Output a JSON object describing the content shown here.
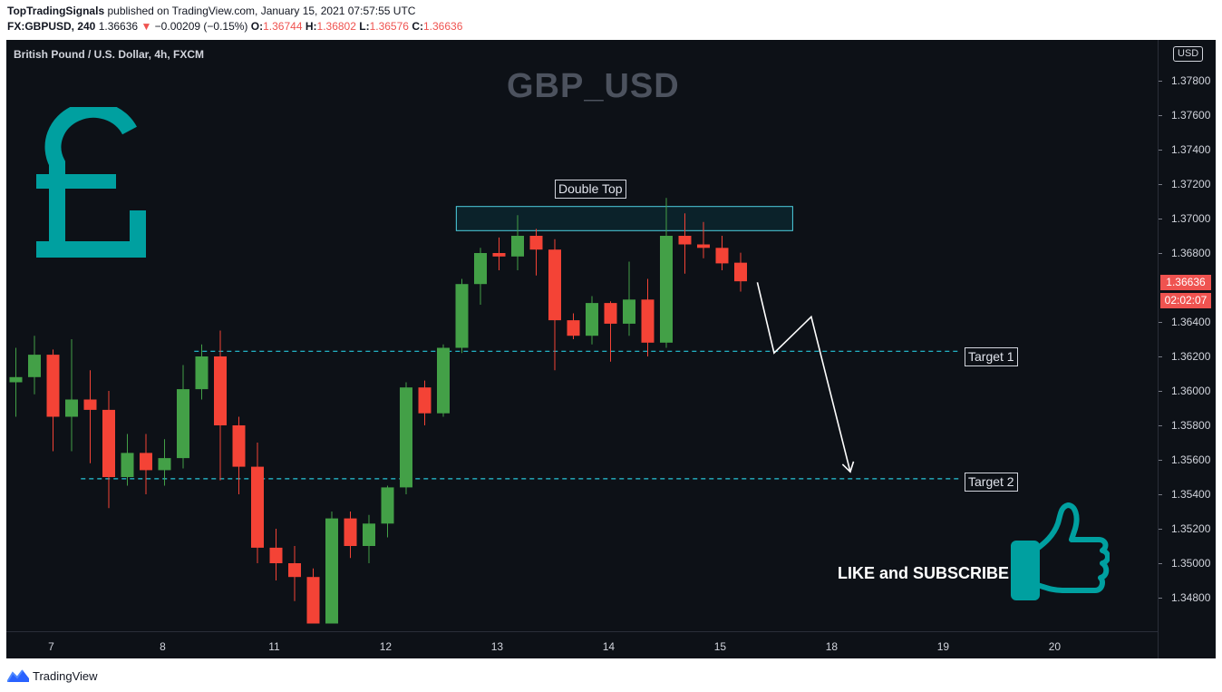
{
  "header": {
    "publisher": "TopTradingSignals",
    "published_text": "published on TradingView.com, January 15, 2021 07:57:55 UTC",
    "ticker": "FX:GBPUSD, 240",
    "last": "1.36636",
    "change_arrow": "▼",
    "change": "−0.00209 (−0.15%)",
    "o_label": "O:",
    "o_value": "1.36744",
    "h_label": "H:",
    "h_value": "1.36802",
    "l_label": "L:",
    "l_value": "1.36576",
    "c_label": "C:",
    "c_value": "1.36636"
  },
  "chart_title": "British Pound / U.S. Dollar, 4h, FXCM",
  "watermark": "GBP_USD",
  "currency_button": "USD",
  "current_price": "1.36636",
  "countdown": "02:02:07",
  "annotations": {
    "double_top": "Double Top",
    "target1": "Target 1",
    "target2": "Target 2",
    "cta": "LIKE and SUBSCRIBE"
  },
  "colors": {
    "up": "#43a047",
    "down": "#f44336",
    "accent": "#00a0a0",
    "background": "#0d1117"
  },
  "footer": {
    "brand": "TradingView"
  },
  "chart_data": {
    "type": "candlestick",
    "symbol": "GBPUSD",
    "interval": "4h",
    "ylim": [
      1.3465,
      1.381
    ],
    "y_ticks": [
      "1.37800",
      "1.37600",
      "1.37400",
      "1.37200",
      "1.37000",
      "1.36800",
      "1.36400",
      "1.36200",
      "1.36000",
      "1.35800",
      "1.35600",
      "1.35400",
      "1.35200",
      "1.35000",
      "1.34800"
    ],
    "x_ticks": [
      {
        "label": "7",
        "i": 1.9
      },
      {
        "label": "8",
        "i": 7.9
      },
      {
        "label": "11",
        "i": 13.9
      },
      {
        "label": "12",
        "i": 19.9
      },
      {
        "label": "13",
        "i": 25.9
      },
      {
        "label": "14",
        "i": 31.9
      },
      {
        "label": "15",
        "i": 37.9
      },
      {
        "label": "18",
        "i": 43.9
      },
      {
        "label": "19",
        "i": 49.9
      },
      {
        "label": "20",
        "i": 55.9
      }
    ],
    "candles": [
      {
        "o": 1.3605,
        "h": 1.3625,
        "l": 1.3585,
        "c": 1.3608
      },
      {
        "o": 1.3608,
        "h": 1.3632,
        "l": 1.3598,
        "c": 1.3621
      },
      {
        "o": 1.3621,
        "h": 1.3624,
        "l": 1.3565,
        "c": 1.3585
      },
      {
        "o": 1.3585,
        "h": 1.363,
        "l": 1.3565,
        "c": 1.3595
      },
      {
        "o": 1.3595,
        "h": 1.3612,
        "l": 1.3558,
        "c": 1.3589
      },
      {
        "o": 1.3589,
        "h": 1.36,
        "l": 1.3532,
        "c": 1.355
      },
      {
        "o": 1.355,
        "h": 1.3575,
        "l": 1.3545,
        "c": 1.3564
      },
      {
        "o": 1.3564,
        "h": 1.3575,
        "l": 1.354,
        "c": 1.3554
      },
      {
        "o": 1.3554,
        "h": 1.3572,
        "l": 1.3545,
        "c": 1.3561
      },
      {
        "o": 1.3561,
        "h": 1.3615,
        "l": 1.3555,
        "c": 1.3601
      },
      {
        "o": 1.3601,
        "h": 1.3627,
        "l": 1.3595,
        "c": 1.362
      },
      {
        "o": 1.362,
        "h": 1.3635,
        "l": 1.3548,
        "c": 1.358
      },
      {
        "o": 1.358,
        "h": 1.3585,
        "l": 1.354,
        "c": 1.3556
      },
      {
        "o": 1.3556,
        "h": 1.357,
        "l": 1.35,
        "c": 1.3509
      },
      {
        "o": 1.3509,
        "h": 1.352,
        "l": 1.349,
        "c": 1.35
      },
      {
        "o": 1.35,
        "h": 1.351,
        "l": 1.3478,
        "c": 1.3492
      },
      {
        "o": 1.3492,
        "h": 1.3497,
        "l": 1.3465,
        "c": 1.3465
      },
      {
        "o": 1.3465,
        "h": 1.353,
        "l": 1.3465,
        "c": 1.3526
      },
      {
        "o": 1.3526,
        "h": 1.353,
        "l": 1.3503,
        "c": 1.351
      },
      {
        "o": 1.351,
        "h": 1.3528,
        "l": 1.35,
        "c": 1.3523
      },
      {
        "o": 1.3523,
        "h": 1.3545,
        "l": 1.3515,
        "c": 1.3544
      },
      {
        "o": 1.3544,
        "h": 1.3605,
        "l": 1.354,
        "c": 1.3602
      },
      {
        "o": 1.3602,
        "h": 1.3606,
        "l": 1.358,
        "c": 1.3587
      },
      {
        "o": 1.3587,
        "h": 1.3627,
        "l": 1.3585,
        "c": 1.3625
      },
      {
        "o": 1.3625,
        "h": 1.3665,
        "l": 1.3622,
        "c": 1.3662
      },
      {
        "o": 1.3662,
        "h": 1.3683,
        "l": 1.365,
        "c": 1.368
      },
      {
        "o": 1.368,
        "h": 1.3689,
        "l": 1.367,
        "c": 1.3678
      },
      {
        "o": 1.3678,
        "h": 1.3702,
        "l": 1.367,
        "c": 1.369
      },
      {
        "o": 1.369,
        "h": 1.3694,
        "l": 1.3667,
        "c": 1.3682
      },
      {
        "o": 1.3682,
        "h": 1.3688,
        "l": 1.3612,
        "c": 1.3641
      },
      {
        "o": 1.3641,
        "h": 1.3645,
        "l": 1.363,
        "c": 1.3632
      },
      {
        "o": 1.3632,
        "h": 1.3655,
        "l": 1.3627,
        "c": 1.3651
      },
      {
        "o": 1.3651,
        "h": 1.3652,
        "l": 1.3617,
        "c": 1.3639
      },
      {
        "o": 1.3639,
        "h": 1.3675,
        "l": 1.3632,
        "c": 1.3653
      },
      {
        "o": 1.3653,
        "h": 1.3665,
        "l": 1.362,
        "c": 1.3628
      },
      {
        "o": 1.3628,
        "h": 1.3712,
        "l": 1.3625,
        "c": 1.369
      },
      {
        "o": 1.369,
        "h": 1.3703,
        "l": 1.3668,
        "c": 1.3685
      },
      {
        "o": 1.3685,
        "h": 1.3698,
        "l": 1.3677,
        "c": 1.3683
      },
      {
        "o": 1.3683,
        "h": 1.369,
        "l": 1.367,
        "c": 1.3674
      },
      {
        "o": 1.36744,
        "h": 1.36802,
        "l": 1.36576,
        "c": 1.36636
      }
    ],
    "resistance_zone": {
      "label": "Double Top",
      "i_start": 23.7,
      "i_end": 41.8,
      "low": 1.3693,
      "high": 1.3707
    },
    "levels": [
      {
        "name": "Target 1",
        "price": 1.3623,
        "i_start": 9.6,
        "i_end": 50.8
      },
      {
        "name": "Target 2",
        "price": 1.3549,
        "i_start": 3.5,
        "i_end": 50.8
      }
    ],
    "projection": [
      {
        "i": 39.9,
        "p": 1.3663
      },
      {
        "i": 40.8,
        "p": 1.3622
      },
      {
        "i": 42.8,
        "p": 1.3643
      },
      {
        "i": 44.9,
        "p": 1.3553
      }
    ]
  }
}
